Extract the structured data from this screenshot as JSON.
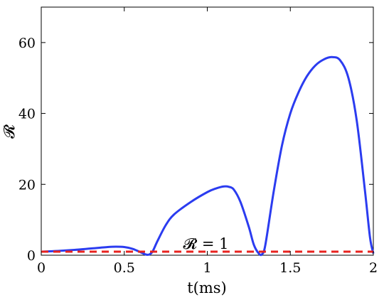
{
  "chart_data": {
    "type": "line",
    "title": "",
    "xlabel": "t(ms)",
    "ylabel": "𝓡",
    "xlim": [
      0,
      2
    ],
    "ylim": [
      0,
      70
    ],
    "xticks": [
      0,
      0.5,
      1,
      1.5,
      2
    ],
    "xtick_labels": [
      "0",
      "0.5",
      "1",
      "1.5",
      "2"
    ],
    "yticks": [
      0,
      20,
      40,
      60
    ],
    "ytick_labels": [
      "0",
      "20",
      "40",
      "60"
    ],
    "grid": false,
    "annotation": {
      "text": "𝓡 = 1",
      "x": 1.0,
      "y": 1
    },
    "series": [
      {
        "color": "#2b3cf0",
        "style": "solid",
        "x": [
          0,
          0.1,
          0.2,
          0.3,
          0.4,
          0.45,
          0.5,
          0.55,
          0.6,
          0.63,
          0.65,
          0.67,
          0.7,
          0.75,
          0.8,
          0.9,
          1.0,
          1.05,
          1.1,
          1.13,
          1.16,
          1.2,
          1.25,
          1.28,
          1.31,
          1.33,
          1.35,
          1.4,
          1.45,
          1.5,
          1.55,
          1.6,
          1.65,
          1.7,
          1.75,
          1.8,
          1.85,
          1.9,
          1.95,
          1.98,
          2.0
        ],
        "y": [
          1.0,
          1.2,
          1.5,
          1.9,
          2.3,
          2.4,
          2.3,
          1.8,
          0.8,
          0.2,
          0.2,
          1.0,
          4.0,
          8.5,
          11.5,
          15.0,
          17.8,
          18.8,
          19.4,
          19.3,
          18.5,
          15.0,
          8.0,
          3.0,
          0.5,
          0.3,
          3.0,
          18.0,
          31.0,
          40.0,
          46.0,
          50.5,
          53.5,
          55.2,
          55.9,
          55.0,
          50.0,
          38.0,
          18.0,
          5.0,
          0.5
        ]
      },
      {
        "color": "#e8231f",
        "style": "dashed",
        "x": [
          0,
          2
        ],
        "y": [
          1,
          1
        ]
      }
    ]
  }
}
